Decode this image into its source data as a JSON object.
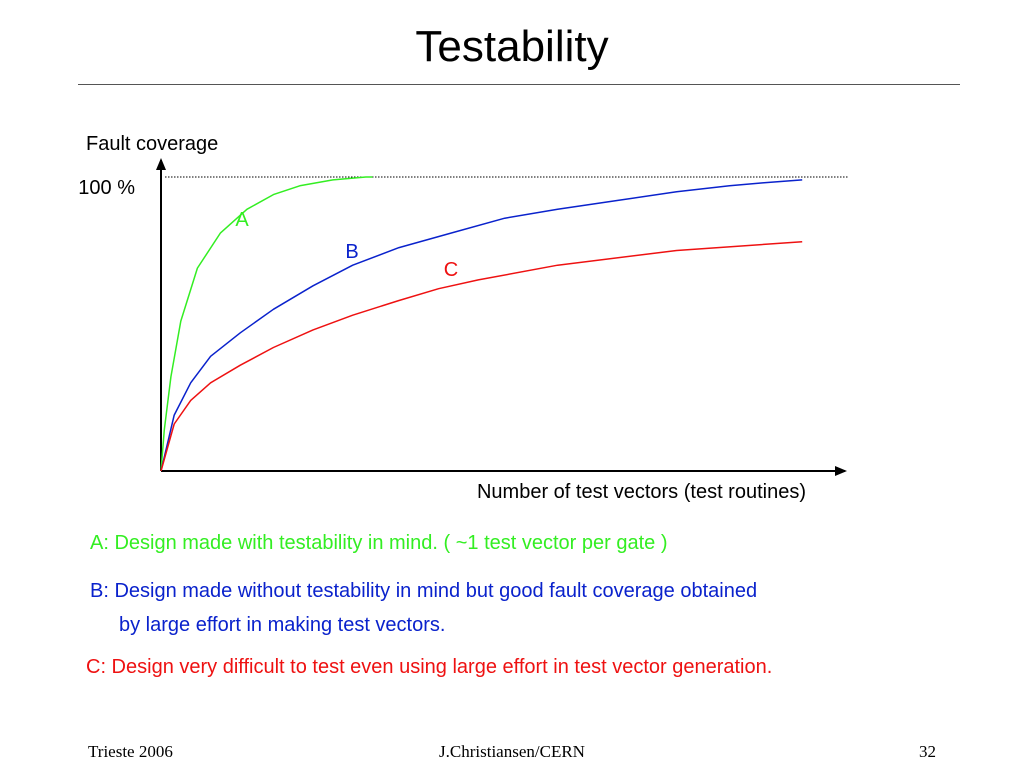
{
  "slide": {
    "title": "Testability",
    "footer_left": "Trieste 2006",
    "footer_center": "J.Christiansen/CERN",
    "footer_right": "32"
  },
  "chart_data": {
    "type": "line",
    "ylabel": "Fault coverage",
    "xlabel": "Number of test vectors (test routines)",
    "y_tick_label": "100 %",
    "ylim": [
      0,
      100
    ],
    "xlim": [
      0,
      100
    ],
    "reference_line": {
      "y": 100,
      "style": "dotted"
    },
    "grid": false,
    "series": [
      {
        "name": "A",
        "color": "#33ee22",
        "x": [
          0,
          0.5,
          1.5,
          3,
          5.5,
          9,
          13,
          17,
          21,
          26,
          31,
          32
        ],
        "y": [
          0,
          14,
          32,
          51,
          69,
          81,
          89,
          94,
          97,
          99,
          100,
          100
        ]
      },
      {
        "name": "B",
        "color": "#0a22cc",
        "x": [
          0,
          2,
          4.5,
          7.5,
          12,
          17,
          23,
          29,
          36,
          44,
          52,
          60,
          69,
          78,
          86,
          91,
          97
        ],
        "y": [
          0,
          19,
          30,
          39,
          47,
          55,
          63,
          70,
          76,
          81,
          86,
          89,
          92,
          95,
          97,
          98,
          99
        ]
      },
      {
        "name": "C",
        "color": "#ee1111",
        "x": [
          0,
          2,
          4.5,
          7.5,
          12,
          17,
          23,
          29,
          36,
          42,
          48,
          60,
          78,
          97
        ],
        "y": [
          0,
          16,
          24,
          30,
          36,
          42,
          48,
          53,
          58,
          62,
          65,
          70,
          75,
          78
        ]
      }
    ]
  },
  "legend": {
    "a": {
      "text": "A: Design made with testability in mind. ( ~1 test vector per gate )",
      "color": "#33ee22"
    },
    "b_line1": {
      "text": "B: Design made without testability in mind but good fault coverage obtained",
      "color": "#0a22cc"
    },
    "b_line2": {
      "text": "by large effort in making test vectors.",
      "color": "#0a22cc"
    },
    "c": {
      "text": "C: Design very difficult to test even using large effort in test vector generation.",
      "color": "#ee1111"
    }
  }
}
